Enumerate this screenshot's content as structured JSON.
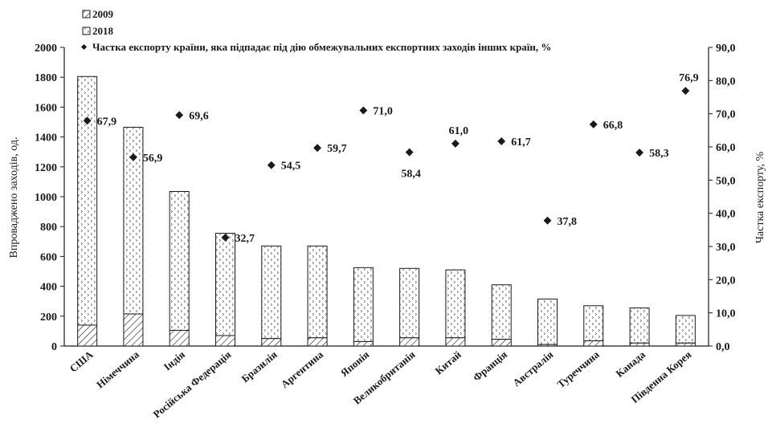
{
  "chart_data": {
    "type": "bar+scatter",
    "categories": [
      "США",
      "Німеччина",
      "Індія",
      "Російська Федерація",
      "Бразилія",
      "Аргентина",
      "Японія",
      "Великобританія",
      "Китай",
      "Франція",
      "Австралія",
      "Туреччина",
      "Канада",
      "Південна Корея"
    ],
    "series": [
      {
        "name": "2009",
        "type": "bar",
        "axis": "left",
        "values": [
          140,
          215,
          105,
          70,
          50,
          55,
          30,
          55,
          55,
          45,
          10,
          35,
          20,
          20
        ]
      },
      {
        "name": "2018",
        "type": "bar",
        "axis": "left",
        "stacked_total": true,
        "values": [
          1805,
          1465,
          1035,
          755,
          670,
          670,
          525,
          520,
          510,
          410,
          315,
          270,
          255,
          205
        ]
      },
      {
        "name": "Частка експорту країни, яка підпадає під дію обмежувальних експортних заходів інших країн, %",
        "type": "scatter",
        "axis": "right",
        "values": [
          67.9,
          56.9,
          69.6,
          32.7,
          54.5,
          59.7,
          71.0,
          58.4,
          61.0,
          61.7,
          37.8,
          66.8,
          58.3,
          76.9
        ]
      }
    ],
    "data_labels": [
      "67,9",
      "56,9",
      "69,6",
      "32,7",
      "54,5",
      "59,7",
      "71,0",
      "58,4",
      "61,0",
      "61,7",
      "37,8",
      "66,8",
      "58,3",
      "76,9"
    ],
    "ylabel": "Впроваджено заходів, од.",
    "y2label": "Частка експорту, %",
    "ylim": [
      0,
      2000
    ],
    "y_ticks": [
      "0",
      "200",
      "400",
      "600",
      "800",
      "1000",
      "1200",
      "1400",
      "1600",
      "1800",
      "2000"
    ],
    "y2lim": [
      0,
      90
    ],
    "y2_ticks": [
      "0,0",
      "10,0",
      "20,0",
      "30,0",
      "40,0",
      "50,0",
      "60,0",
      "70,0",
      "80,0",
      "90,0"
    ],
    "legend": [
      "2009",
      "2018",
      "Частка експорту країни, яка підпадає під дію обмежувальних експортних заходів інших країн, %"
    ],
    "legend_position": "top",
    "grid": false,
    "colors": {
      "ink": "#1a1a1a",
      "bar_fill": "#ffffff",
      "marker": "#1a1a1a"
    }
  }
}
